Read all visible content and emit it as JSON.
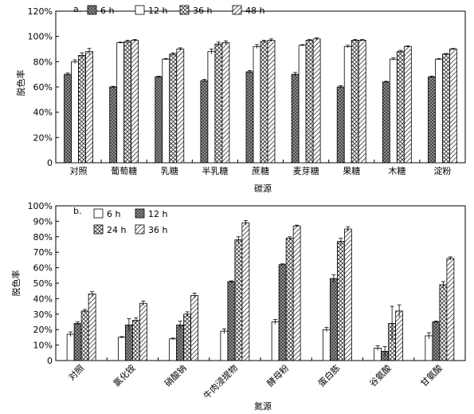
{
  "chart_data": [
    {
      "type": "bar",
      "panel_label": "a.",
      "xlabel": "碳源",
      "ylabel": "脱色率",
      "ylim": [
        0,
        120
      ],
      "yticks": [
        "0",
        "20%",
        "40%",
        "60%",
        "80%",
        "100%",
        "120%"
      ],
      "ytick_values": [
        0,
        20,
        40,
        60,
        80,
        100,
        120
      ],
      "legend_position": "top",
      "categories": [
        "对照",
        "葡萄糖",
        "乳糖",
        "半乳糖",
        "蔗糖",
        "麦芽糖",
        "果糖",
        "木糖",
        "淀粉"
      ],
      "series": [
        {
          "name": "6 h",
          "pattern": "checker",
          "values": [
            70,
            60,
            68,
            65,
            72,
            70,
            60,
            64,
            68
          ],
          "errors": [
            1,
            0.5,
            0.5,
            1,
            1,
            1.5,
            1,
            0.5,
            0.5
          ]
        },
        {
          "name": "12 h",
          "pattern": "white",
          "values": [
            80,
            95,
            82,
            88,
            92,
            93,
            92,
            82,
            82
          ],
          "errors": [
            1.5,
            0.5,
            0.5,
            2,
            1.5,
            0.5,
            1,
            1,
            0.5
          ]
        },
        {
          "name": "36 h",
          "pattern": "cross",
          "values": [
            85,
            96,
            86,
            94,
            96,
            97,
            97,
            88,
            86
          ],
          "errors": [
            2,
            1,
            1,
            1.5,
            1,
            0.5,
            0.5,
            1,
            0.5
          ]
        },
        {
          "name": "48 h",
          "pattern": "hatch",
          "values": [
            88,
            97,
            90,
            95,
            97,
            98,
            97,
            92,
            90
          ],
          "errors": [
            2.5,
            0.5,
            1,
            1.5,
            1,
            1,
            0.5,
            0.5,
            0.5
          ]
        }
      ]
    },
    {
      "type": "bar",
      "panel_label": "b.",
      "xlabel": "氮源",
      "ylabel": "脱色率",
      "ylim": [
        0,
        100
      ],
      "yticks": [
        "0",
        "10%",
        "20%",
        "30%",
        "40%",
        "50%",
        "60%",
        "70%",
        "80%",
        "90%",
        "100%"
      ],
      "ytick_values": [
        0,
        10,
        20,
        30,
        40,
        50,
        60,
        70,
        80,
        90,
        100
      ],
      "legend_position": "top-left",
      "categories": [
        "对照",
        "氯化铵",
        "硝酸钠",
        "牛肉浸提物",
        "酵母粉",
        "蛋白胨",
        "谷氨酸",
        "甘氨酸"
      ],
      "series": [
        {
          "name": "6 h",
          "pattern": "white",
          "values": [
            17,
            15,
            14,
            19,
            25,
            20,
            8,
            16
          ],
          "errors": [
            1.5,
            0.5,
            0.5,
            1.5,
            1.5,
            1.5,
            1.5,
            2
          ]
        },
        {
          "name": "12 h",
          "pattern": "checker",
          "values": [
            24,
            23,
            23,
            51,
            62,
            53,
            6,
            25
          ],
          "errors": [
            1,
            4,
            2.5,
            0.5,
            0.5,
            2.5,
            3,
            0.5
          ]
        },
        {
          "name": "24 h",
          "pattern": "cross",
          "values": [
            32,
            26,
            30,
            78,
            79,
            77,
            24,
            49
          ],
          "errors": [
            1,
            1.5,
            1.5,
            2,
            1,
            2,
            11,
            2
          ]
        },
        {
          "name": "36 h",
          "pattern": "hatch",
          "values": [
            43,
            37,
            42,
            89,
            87,
            85,
            32,
            66
          ],
          "errors": [
            1.5,
            1.5,
            1.5,
            1.5,
            0.5,
            1.5,
            4,
            1
          ]
        }
      ]
    }
  ]
}
